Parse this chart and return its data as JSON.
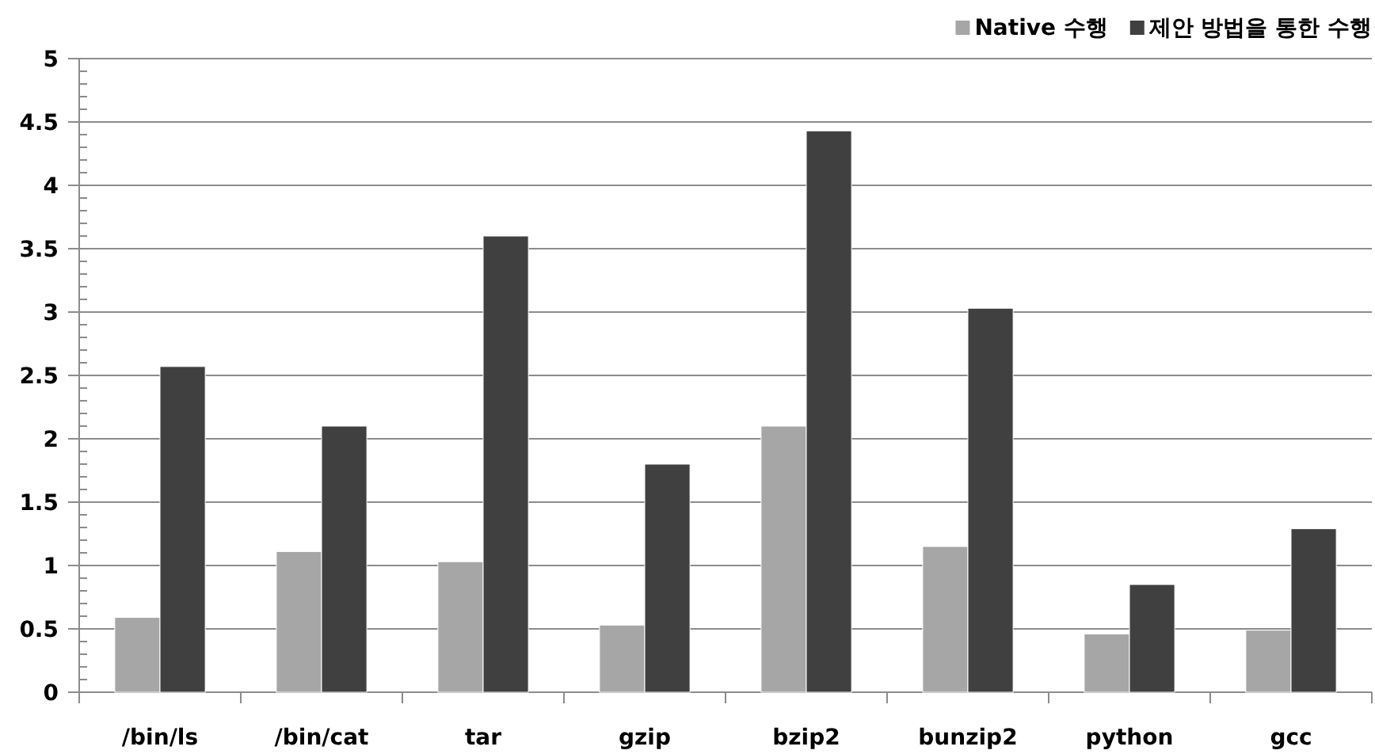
{
  "chart_data": {
    "type": "bar",
    "categories": [
      "/bin/ls",
      "/bin/cat",
      "tar",
      "gzip",
      "bzip2",
      "bunzip2",
      "python",
      "gcc"
    ],
    "series": [
      {
        "name": "Native 수행",
        "color": "#a6a6a6",
        "values": [
          0.59,
          1.11,
          1.03,
          0.53,
          2.1,
          1.15,
          0.46,
          0.49
        ]
      },
      {
        "name": "제안 방법을 통한 수행",
        "color": "#404040",
        "values": [
          2.57,
          2.1,
          3.6,
          1.8,
          4.43,
          3.03,
          0.85,
          1.29
        ]
      }
    ],
    "ylim": [
      0,
      5
    ],
    "yticks": [
      0,
      0.5,
      1,
      1.5,
      2,
      2.5,
      3,
      3.5,
      4,
      4.5,
      5
    ],
    "grid": "y",
    "legend": "top right"
  }
}
